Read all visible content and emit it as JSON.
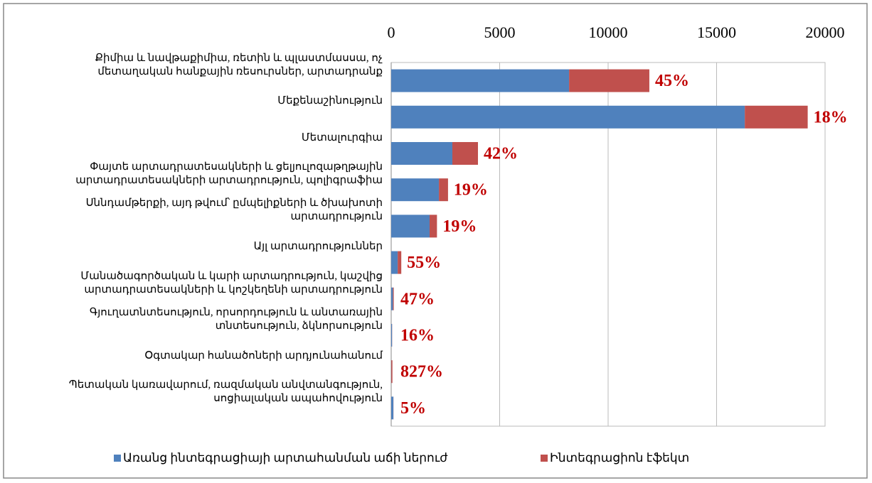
{
  "chart_data": {
    "type": "stacked_bar_horizontal",
    "categories": [
      "Քիմիա և նավթաքիմիա, ռետին և պլաստմասսա, ոչ մետաղական հանքային ռեսուրսներ, արտադրանք",
      "Մեքենաշինություն",
      "Մետալուրգիա",
      "Փայտե արտադրատեսակների և ցելյուլոզաթղթային արտադրատեսակների արտադրություն, պոլիգրաֆիա",
      "Սննդամթերքի, այդ թվում՝ ըմպելիքների և ծխախոտի արտադրություն",
      "Այլ արտադրություններ",
      "Մանածագործական և կարի արտադրություն, կաշվից արտադրատեսակների և կոշկեղենի արտադրություն",
      "Գյուղատնտեսություն, որսորդություն և անտառային տնտեսություն, ձկնորսություն",
      "Օգտակար հանածոների արդյունահանում",
      "Պետական կառավարում, ռազմական անվտանգություն, սոցիալական ապահովություն"
    ],
    "series": [
      {
        "name": "Առանց ինտեգրացիայի արտահանման աճի ներուժ",
        "color": "#4f81bd",
        "values": [
          8200,
          16300,
          2820,
          2200,
          1770,
          300,
          80,
          40,
          6,
          100
        ]
      },
      {
        "name": "Ինտեգրացիոն էֆեկտ",
        "color": "#c0504d",
        "values": [
          3700,
          2900,
          1180,
          420,
          340,
          165,
          38,
          6,
          50,
          5
        ]
      }
    ],
    "annotations": [
      "45%",
      "18%",
      "42%",
      "19%",
      "19%",
      "55%",
      "47%",
      "16%",
      "827%",
      "5%"
    ],
    "xlim": [
      0,
      20000
    ],
    "xticks": [
      0,
      5000,
      10000,
      15000,
      20000
    ],
    "grid": true,
    "legend": "bottom"
  }
}
